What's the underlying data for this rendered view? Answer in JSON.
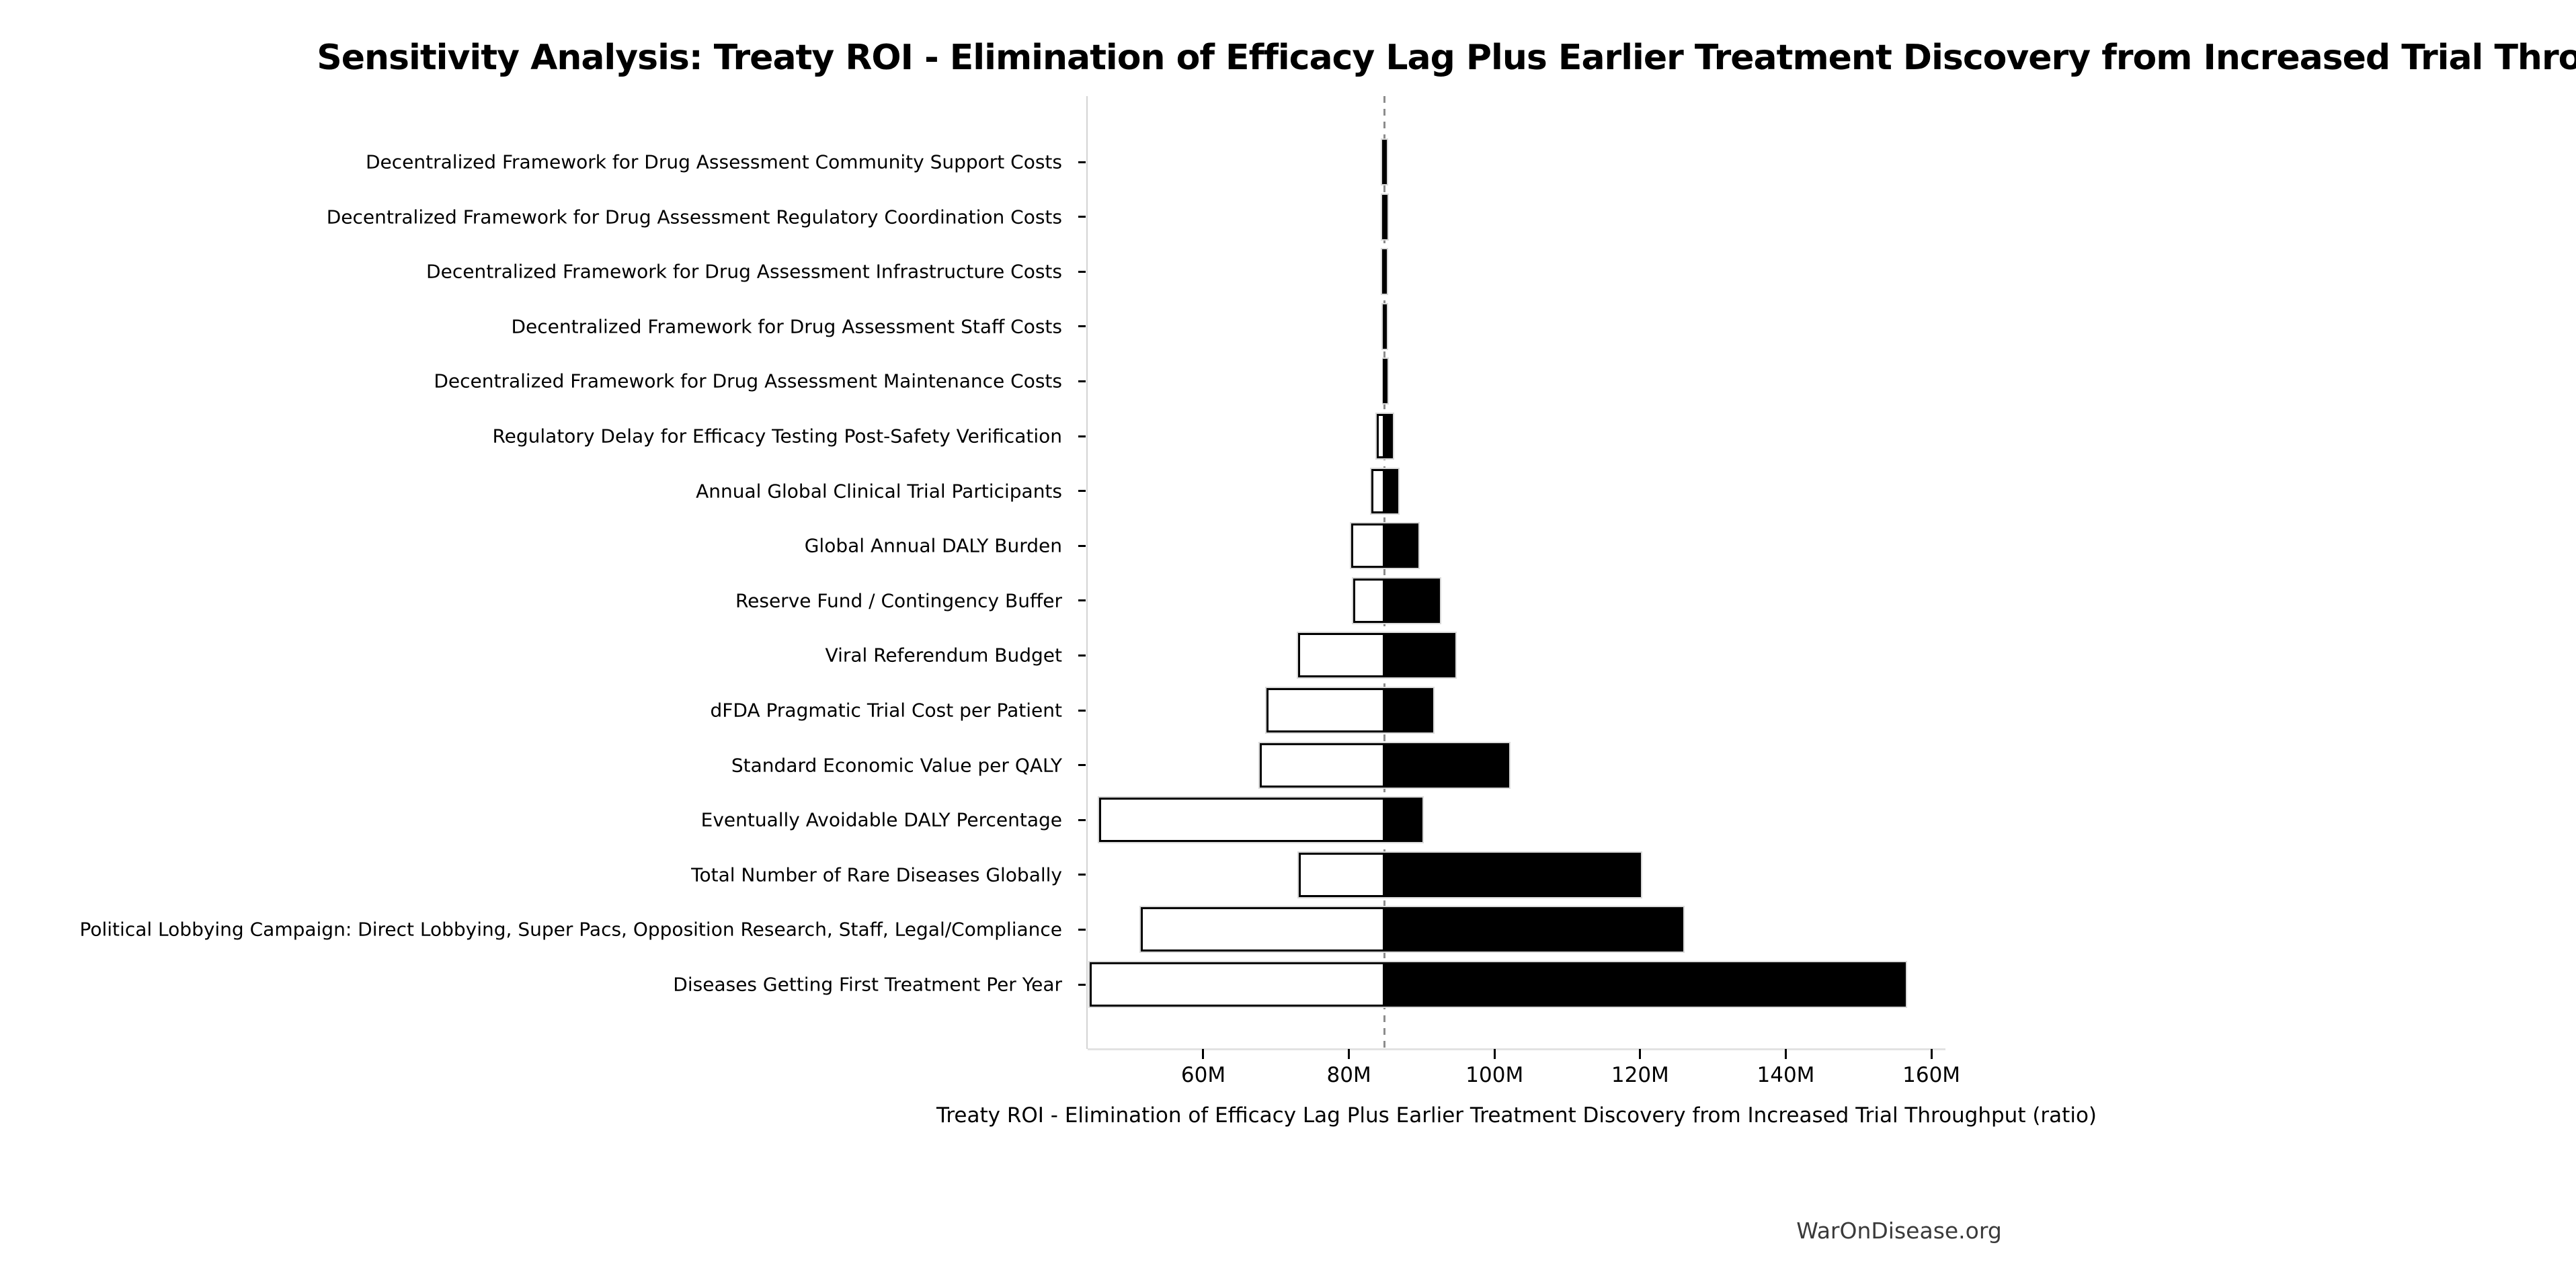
{
  "title": "Sensitivity Analysis: Treaty ROI - Elimination of Efficacy Lag Plus Earlier Treatment Discovery from Increased Trial Throughput",
  "footer": "WarOnDisease.org",
  "chart_data": {
    "type": "bar",
    "subtype": "tornado-sensitivity",
    "orientation": "horizontal",
    "title": "Sensitivity Analysis: Treaty ROI - Elimination of Efficacy Lag Plus Earlier Treatment Discovery from Increased Trial Throughput",
    "xlabel": "Treaty ROI - Elimination of Efficacy Lag Plus Earlier Treatment Discovery from Increased Trial Throughput (ratio)",
    "ylabel": "",
    "units": "millions (ratio)",
    "grid": false,
    "legend": "none",
    "baseline_millions": 84.9,
    "xlim_millions": [
      44.12,
      161.93
    ],
    "x_ticks": [
      {
        "value": 60,
        "label": "60M"
      },
      {
        "value": 80,
        "label": "80M"
      },
      {
        "value": 100,
        "label": "100M"
      },
      {
        "value": 120,
        "label": "120M"
      },
      {
        "value": 140,
        "label": "140M"
      },
      {
        "value": 160,
        "label": "160M"
      }
    ],
    "rows": [
      {
        "label": "Decentralized Framework for Drug Assessment Community Support Costs",
        "low": 84.6,
        "high": 85.2
      },
      {
        "label": "Decentralized Framework for Drug Assessment Regulatory Coordination Costs",
        "low": 84.6,
        "high": 85.3
      },
      {
        "label": "Decentralized Framework for Drug Assessment Infrastructure Costs",
        "low": 84.6,
        "high": 85.25
      },
      {
        "label": "Decentralized Framework for Drug Assessment Staff Costs",
        "low": 84.65,
        "high": 85.25
      },
      {
        "label": "Decentralized Framework for Drug Assessment Maintenance Costs",
        "low": 84.7,
        "high": 85.2
      },
      {
        "label": "Regulatory Delay for Efficacy Testing Post-Safety Verification",
        "low": 83.8,
        "high": 86.0
      },
      {
        "label": "Annual Global Clinical Trial Participants",
        "low": 83.1,
        "high": 86.8
      },
      {
        "label": "Global Annual DALY Burden",
        "low": 80.3,
        "high": 89.5
      },
      {
        "label": "Reserve Fund / Contingency Buffer",
        "low": 80.6,
        "high": 92.5
      },
      {
        "label": "Viral Referendum Budget",
        "low": 73.0,
        "high": 94.6
      },
      {
        "label": "dFDA Pragmatic Trial Cost per Patient",
        "low": 68.7,
        "high": 91.6
      },
      {
        "label": "Standard Economic Value per QALY",
        "low": 67.8,
        "high": 102.0
      },
      {
        "label": "Eventually Avoidable DALY Percentage",
        "low": 45.7,
        "high": 90.1
      },
      {
        "label": "Total Number of Rare Diseases Globally",
        "low": 73.1,
        "high": 120.1
      },
      {
        "label": "Political Lobbying Campaign: Direct Lobbying, Super Pacs, Opposition Research, Staff, Legal/Compliance",
        "low": 51.4,
        "high": 125.9
      },
      {
        "label": "Diseases Getting First Treatment Per Year",
        "low": 44.4,
        "high": 156.5
      }
    ]
  },
  "colors": {
    "background": "#ffffff",
    "bar_fill_low_side": "#ffffff",
    "bar_fill_high_side": "#000000",
    "bar_border": "#000000",
    "bar_outer_outline": "#d9d9d9",
    "baseline_dash": "#8c8c8c",
    "spine": "#d4d4d4",
    "text": "#000000",
    "footer_text": "#3a3a3a"
  }
}
